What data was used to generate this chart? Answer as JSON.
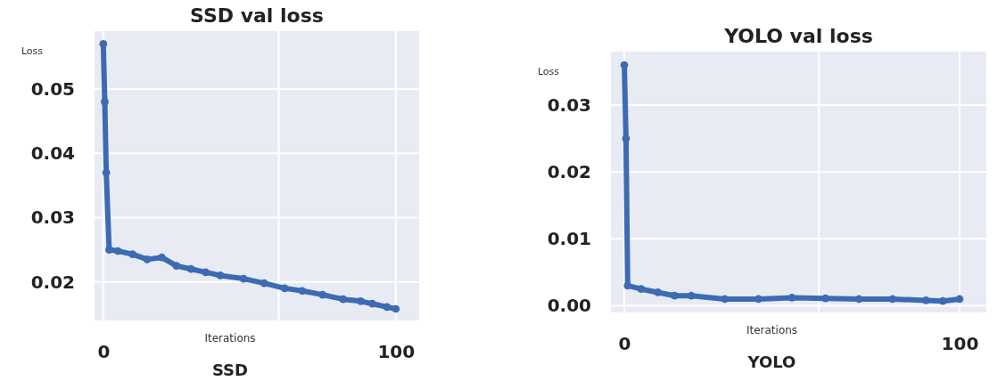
{
  "chart_data": [
    {
      "type": "line",
      "title": "SSD val loss",
      "xlabel": "Iterations",
      "ylabel": "Loss",
      "annotations": [
        "SSD"
      ],
      "marker": "circle",
      "grid": true,
      "xlim": [
        -3,
        108
      ],
      "xticks": [
        {
          "value": 0,
          "label": "0"
        },
        {
          "value": 60,
          "label": null
        },
        100
      ],
      "ylim": [
        0.014,
        0.059
      ],
      "yticks": [
        0.02,
        0.03,
        0.04,
        0.05
      ],
      "series": [
        {
          "color": "#3d6bb3",
          "x": [
            0,
            0.5,
            1,
            2,
            5,
            10,
            15,
            20,
            25,
            30,
            35,
            40,
            48,
            55,
            62,
            68,
            75,
            82,
            88,
            92,
            97,
            100
          ],
          "values": [
            0.057,
            0.048,
            0.037,
            0.025,
            0.0248,
            0.0243,
            0.0235,
            0.0238,
            0.0225,
            0.022,
            0.0215,
            0.021,
            0.0205,
            0.0198,
            0.019,
            0.0186,
            0.018,
            0.0173,
            0.017,
            0.0166,
            0.0161,
            0.0158
          ]
        }
      ]
    },
    {
      "type": "line",
      "title": "YOLO val loss",
      "xlabel": "Iterations",
      "ylabel": "Loss",
      "annotations": [
        "YOLO"
      ],
      "marker": "circle",
      "grid": true,
      "xlim": [
        -4,
        108
      ],
      "xticks": [
        {
          "value": 0,
          "label": "0"
        },
        {
          "value": 58,
          "label": null
        },
        100
      ],
      "ylim": [
        -0.001,
        0.038
      ],
      "yticks": [
        {
          "value": 0,
          "label": "0.00"
        },
        {
          "value": 0.01,
          "label": "0.01"
        },
        {
          "value": 0.02,
          "label": "0.02"
        },
        {
          "value": 0.03,
          "label": "0.03"
        }
      ],
      "series": [
        {
          "color": "#3d6bb3",
          "x": [
            0,
            0.5,
            1,
            5,
            10,
            15,
            20,
            30,
            40,
            50,
            60,
            70,
            80,
            90,
            95,
            100
          ],
          "values": [
            0.036,
            0.025,
            0.003,
            0.0025,
            0.002,
            0.0015,
            0.0015,
            0.001,
            0.001,
            0.0012,
            0.0011,
            0.001,
            0.001,
            0.0008,
            0.0007,
            0.001
          ]
        }
      ]
    }
  ]
}
